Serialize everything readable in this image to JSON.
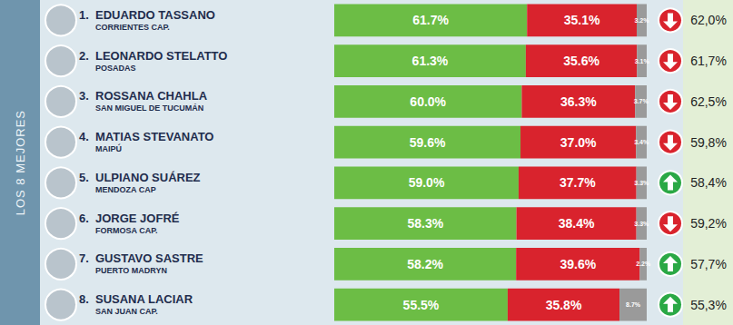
{
  "chart_data": {
    "type": "bar",
    "title": "LOS 8 MEJORES",
    "orientation": "horizontal",
    "stacked": true,
    "data_labels": true,
    "tick_labels": false,
    "ranks": [
      "1.",
      "2.",
      "3.",
      "4.",
      "5.",
      "6.",
      "7.",
      "8."
    ],
    "categories": [
      "EDUARDO TASSANO",
      "LEONARDO STELATTO",
      "ROSSANA CHAHLA",
      "MATIAS STEVANATO",
      "ULPIANO SUÁREZ",
      "JORGE JOFRÉ",
      "GUSTAVO SASTRE",
      "SUSANA LACIAR"
    ],
    "cities": [
      "CORRIENTES CAP.",
      "POSADAS",
      "SAN MIGUEL DE TUCUMÁN",
      "MAIPÚ",
      "MENDOZA CAP",
      "FORMOSA CAP.",
      "PUERTO MADRYN",
      "SAN JUAN CAP."
    ],
    "xlim": [
      0,
      100
    ],
    "series": [
      {
        "color": "#6cbd45",
        "values": [
          61.7,
          61.3,
          60.0,
          59.6,
          59.0,
          58.3,
          58.2,
          55.5
        ],
        "value_labels": [
          "61.7%",
          "61.3%",
          "60.0%",
          "59.6%",
          "59.0%",
          "58.3%",
          "58.2%",
          "55.5%"
        ]
      },
      {
        "color": "#d9232d",
        "values": [
          35.1,
          35.6,
          36.3,
          37.0,
          37.7,
          38.4,
          39.6,
          35.8
        ],
        "value_labels": [
          "35.1%",
          "35.6%",
          "36.3%",
          "37.0%",
          "37.7%",
          "38.4%",
          "39.6%",
          "35.8%"
        ]
      },
      {
        "color": "#9a9a9a",
        "values": [
          3.2,
          3.1,
          3.7,
          3.4,
          3.3,
          3.3,
          2.2,
          8.7
        ],
        "value_labels": [
          "3.2%",
          "3.1%",
          "3.7%",
          "3.4%",
          "3.3%",
          "3.3%",
          "2.2%",
          "8.7%"
        ]
      }
    ],
    "previous": {
      "values": [
        62.0,
        61.7,
        62.5,
        59.8,
        58.4,
        59.2,
        57.7,
        55.3
      ],
      "value_labels": [
        "62,0%",
        "61,7%",
        "62,5%",
        "59,8%",
        "58,4%",
        "59,2%",
        "57,7%",
        "55,3%"
      ]
    }
  }
}
